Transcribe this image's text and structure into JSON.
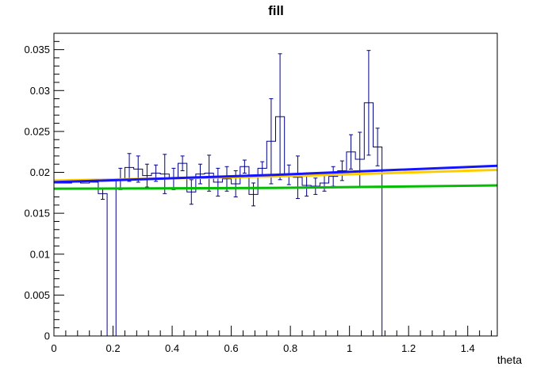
{
  "page": {
    "background": "#ffffff"
  },
  "chart_data": {
    "type": "bar",
    "subtype": "root-histogram-with-fit-curves",
    "title": "fill",
    "xlabel": "theta",
    "ylabel": "",
    "x_range": [
      0,
      1.5
    ],
    "y_range": [
      0,
      0.037
    ],
    "grid": false,
    "legend": "none",
    "frame_color": "#000000",
    "histogram_color": "#00008b",
    "bin_width": 0.03,
    "bin_start": 0,
    "x_tick_values": [
      0,
      0.2,
      0.4,
      0.6,
      0.8,
      1,
      1.2,
      1.4
    ],
    "x_tick_labels": [
      "0",
      "0.2",
      "0.4",
      "0.6",
      "0.8",
      "1",
      "1.2",
      "1.4"
    ],
    "x_minor_step": 0.04,
    "y_tick_values": [
      0,
      0.005,
      0.01,
      0.015,
      0.02,
      0.025,
      0.03,
      0.035
    ],
    "y_tick_labels": [
      "0",
      "0.005",
      "0.01",
      "0.015",
      "0.02",
      "0.025",
      "0.03",
      "0.035"
    ],
    "y_minor_step": 0.001,
    "values": [
      0.0187,
      0.0187,
      0.0188,
      0.0187,
      0.0188,
      0.0174,
      0,
      0.0192,
      0.0206,
      0.0204,
      0.0196,
      0.0199,
      0.0198,
      0.0192,
      0.0211,
      0.0176,
      0.0198,
      0.0199,
      0.0188,
      0.0192,
      0.0186,
      0.0207,
      0.0173,
      0.0205,
      0.0238,
      0.0268,
      0.0197,
      0.0194,
      0.0184,
      0.0183,
      0.0187,
      0.0195,
      0.0202,
      0.0225,
      0.0216,
      0.0285,
      0.0231,
      0,
      0,
      0,
      0,
      0,
      0,
      0,
      0,
      0,
      0,
      0,
      0,
      0
    ],
    "errors": [
      0,
      0,
      0,
      0,
      0,
      0.0007,
      0,
      0.0013,
      0.0017,
      0.0016,
      0.0014,
      0.001,
      0.0024,
      0.0013,
      0.0009,
      0.0015,
      0.0012,
      0.0022,
      0.0017,
      0.0015,
      0.0016,
      0.0008,
      0.0014,
      0.0008,
      0.0052,
      0.0077,
      0.0012,
      0.0026,
      0.0013,
      0.001,
      0.001,
      0.0012,
      0.0012,
      0.0021,
      0.0033,
      0.0064,
      0.0023,
      0,
      0,
      0,
      0,
      0,
      0,
      0,
      0,
      0,
      0,
      0,
      0,
      0
    ],
    "curves": [
      {
        "name": "fit-green",
        "color": "#02bd02",
        "width": 3,
        "points": [
          [
            0,
            0.018
          ],
          [
            0.75,
            0.0181
          ],
          [
            1.5,
            0.0184
          ]
        ]
      },
      {
        "name": "fit-orange",
        "color": "#ffcc00",
        "width": 3,
        "points": [
          [
            0,
            0.019
          ],
          [
            0.75,
            0.0195
          ],
          [
            1.5,
            0.0203
          ]
        ]
      },
      {
        "name": "fit-blue",
        "color": "#1414ff",
        "width": 3,
        "points": [
          [
            0,
            0.0188
          ],
          [
            0.75,
            0.0197
          ],
          [
            1.5,
            0.0208
          ]
        ]
      }
    ]
  }
}
